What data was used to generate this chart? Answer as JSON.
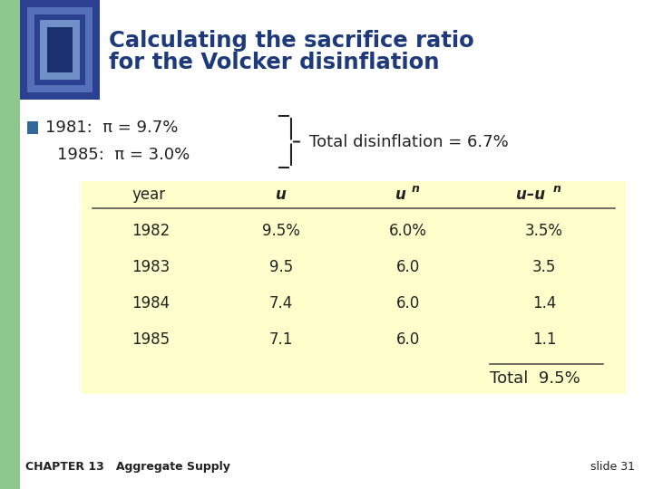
{
  "title_line1": "Calculating the sacrifice ratio",
  "title_line2": "for the Volcker disinflation",
  "title_color": "#1F3A7A",
  "bg_color": "#FFFFFF",
  "left_bar_color": "#8DC88D",
  "bullet_color": "#336699",
  "bullet_line1": "1981:  π = 9.7%",
  "bullet_line2": "1985:  π = 3.0%",
  "brace_text": "Total disinflation = 6.7%",
  "table_bg": "#FFFFCC",
  "table_rows": [
    [
      "1982",
      "9.5%",
      "6.0%",
      "3.5%"
    ],
    [
      "1983",
      "9.5",
      "6.0",
      "3.5"
    ],
    [
      "1984",
      "7.4",
      "6.0",
      "1.4"
    ],
    [
      "1985",
      "7.1",
      "6.0",
      "1.1"
    ]
  ],
  "total_label": "Total  9.5%",
  "footer_left": "CHAPTER 13   Aggregate Supply",
  "footer_right": "slide 31",
  "text_color": "#222222",
  "dark_blue": "#1F3A7A",
  "icon_outer": "#2B4090",
  "icon_mid": "#4A6BB0",
  "icon_inner": "#1A3070"
}
